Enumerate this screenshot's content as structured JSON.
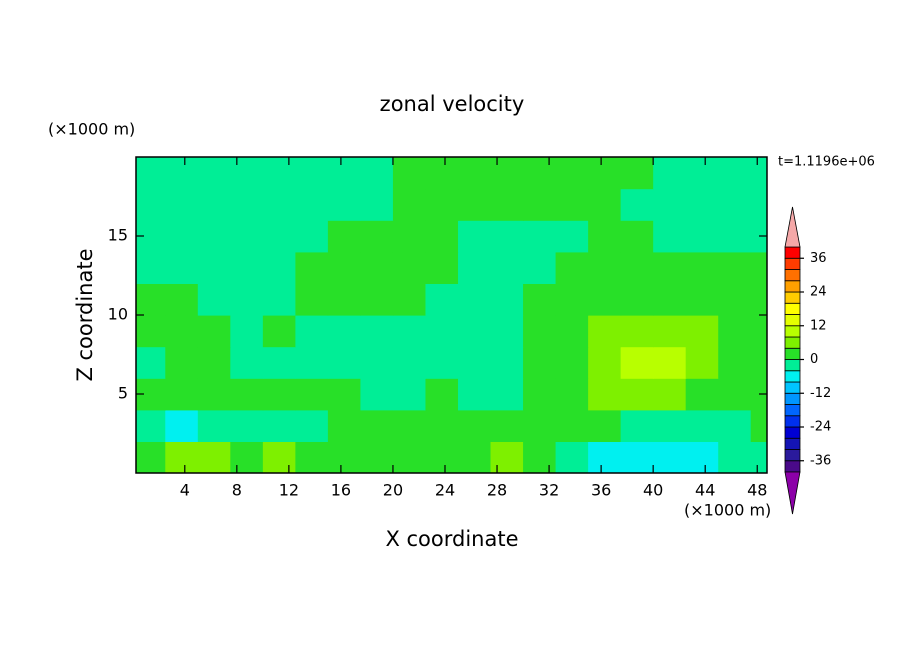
{
  "chart_data": {
    "type": "contour",
    "title": "zonal velocity",
    "x_label": "X coordinate",
    "y_label": "Z coordinate",
    "x_unit": "(×1000 m)",
    "y_unit": "(×1000 m)",
    "time_label": "t=1.1196e+06",
    "xlim": [
      0.25,
      48.75
    ],
    "ylim": [
      0,
      20
    ],
    "xticks": [
      4,
      8,
      12,
      16,
      20,
      24,
      28,
      32,
      36,
      40,
      44,
      48
    ],
    "yticks": [
      5,
      10,
      15
    ],
    "x": [
      1.25,
      3.75,
      6.25,
      8.75,
      11.25,
      13.75,
      16.25,
      18.75,
      21.25,
      23.75,
      26.25,
      28.75,
      31.25,
      33.75,
      36.25,
      38.75,
      41.25,
      43.75,
      46.25,
      48.75
    ],
    "z": [
      1,
      3,
      5,
      7,
      9,
      11,
      13,
      15,
      17,
      19
    ],
    "values": [
      [
        2,
        6,
        6,
        2,
        6,
        2,
        2,
        2,
        2,
        2,
        2,
        6,
        2,
        -2,
        -6,
        -6,
        -6,
        -6,
        -2,
        -2
      ],
      [
        -2,
        -6,
        -2,
        -2,
        -2,
        -2,
        2,
        2,
        2,
        2,
        2,
        2,
        2,
        2,
        2,
        -2,
        -2,
        -2,
        -2,
        2
      ],
      [
        2,
        2,
        2,
        2,
        2,
        2,
        2,
        -2,
        -2,
        2,
        -2,
        -2,
        2,
        2,
        6,
        6,
        6,
        2,
        2,
        2
      ],
      [
        -2,
        2,
        2,
        -2,
        -2,
        -2,
        -2,
        -2,
        -2,
        -2,
        -2,
        -2,
        2,
        2,
        6,
        10,
        10,
        6,
        2,
        2
      ],
      [
        2,
        2,
        2,
        -2,
        2,
        -2,
        -2,
        -2,
        -2,
        -2,
        -2,
        -2,
        2,
        2,
        6,
        6,
        6,
        6,
        2,
        2
      ],
      [
        2,
        2,
        -2,
        -2,
        -2,
        2,
        2,
        2,
        2,
        -2,
        -2,
        -2,
        2,
        2,
        2,
        2,
        2,
        2,
        2,
        2
      ],
      [
        -2,
        -2,
        -2,
        -2,
        -2,
        2,
        2,
        2,
        2,
        2,
        -2,
        -2,
        -2,
        2,
        2,
        2,
        2,
        2,
        2,
        2
      ],
      [
        -2,
        -2,
        -2,
        -2,
        -2,
        -2,
        2,
        2,
        2,
        2,
        -2,
        -2,
        -2,
        -2,
        2,
        2,
        -2,
        -2,
        -2,
        -2
      ],
      [
        -2,
        -2,
        -2,
        -2,
        -2,
        -2,
        -2,
        -2,
        2,
        2,
        2,
        2,
        2,
        2,
        2,
        -2,
        -2,
        -2,
        -2,
        -2
      ],
      [
        -2,
        -2,
        -2,
        -2,
        -2,
        -2,
        -2,
        -2,
        2,
        2,
        2,
        2,
        2,
        2,
        2,
        2,
        -2,
        -2,
        -2,
        -2
      ]
    ],
    "levels": [
      -40,
      -36,
      -32,
      -28,
      -24,
      -20,
      -16,
      -12,
      -8,
      -4,
      0,
      4,
      8,
      12,
      16,
      20,
      24,
      28,
      32,
      36,
      40
    ],
    "colors": [
      "#8c00a8",
      "#4a0a8a",
      "#2a1a9c",
      "#1414b4",
      "#0000d2",
      "#0030ee",
      "#0066ff",
      "#0096ff",
      "#00c4ff",
      "#00f0f0",
      "#00ee96",
      "#28e028",
      "#7ef000",
      "#b8ff00",
      "#e4ff00",
      "#ffff00",
      "#ffcc00",
      "#ffa000",
      "#ff7000",
      "#ff3c00",
      "#ff0000",
      "#f5a8a8"
    ],
    "colorbar_ticks": [
      -36,
      -24,
      -12,
      0,
      12,
      24,
      36
    ]
  }
}
